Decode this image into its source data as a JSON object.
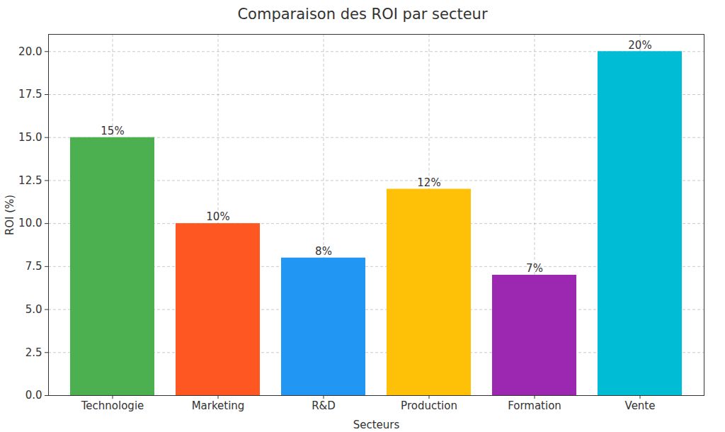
{
  "chart_data": {
    "type": "bar",
    "title": "Comparaison des ROI par secteur",
    "x_label": "Secteurs",
    "y_label": "ROI (%)",
    "categories": [
      "Technologie",
      "Marketing",
      "R&D",
      "Production",
      "Formation",
      "Vente"
    ],
    "values": [
      15,
      10,
      8,
      12,
      7,
      20
    ],
    "value_labels": [
      "15%",
      "10%",
      "8%",
      "12%",
      "7%",
      "20%"
    ],
    "colors": [
      "#4caf50",
      "#ff5722",
      "#2196f3",
      "#ffc107",
      "#9c27b0",
      "#00bcd4"
    ],
    "ylim": [
      0,
      21
    ],
    "yticks": [
      {
        "value": 0,
        "label": "0.0"
      },
      {
        "value": 2.5,
        "label": "2.5"
      },
      {
        "value": 5,
        "label": "5.0"
      },
      {
        "value": 7.5,
        "label": "7.5"
      },
      {
        "value": 10,
        "label": "10.0"
      },
      {
        "value": 12.5,
        "label": "12.5"
      },
      {
        "value": 15,
        "label": "15.0"
      },
      {
        "value": 17.5,
        "label": "17.5"
      },
      {
        "value": 20,
        "label": "20.0"
      }
    ],
    "grid": true,
    "data_labels": true
  }
}
